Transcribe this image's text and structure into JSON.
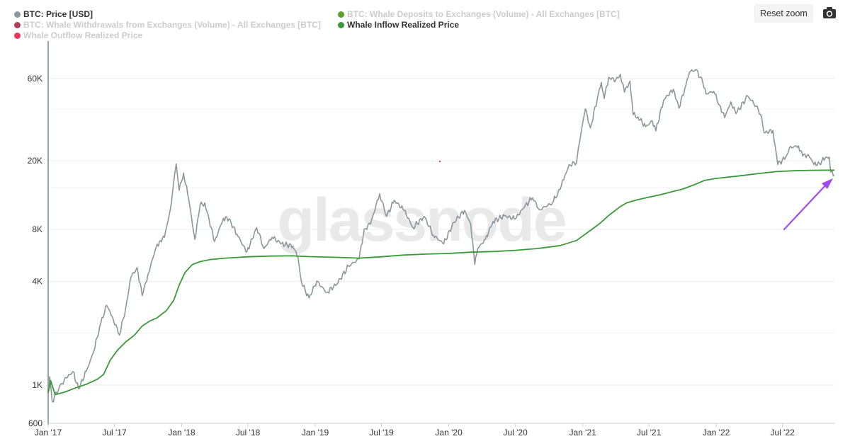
{
  "legend": [
    {
      "label": "BTC: Price [USD]",
      "color": "#8c969c",
      "active": true
    },
    {
      "label": "BTC: Whale Withdrawals from Exchanges (Volume) - All Exchanges [BTC]",
      "color": "#b0405a",
      "active": false
    },
    {
      "label": "Whale Outflow Realized Price",
      "color": "#e8385f",
      "active": false
    },
    {
      "label": "BTC: Whale Deposits to Exchanges (Volume) - All Exchanges [BTC]",
      "color": "#5aa02c",
      "active": false
    },
    {
      "label": "Whale Inflow Realized Price",
      "color": "#3a9a3a",
      "active": true
    }
  ],
  "toolbar": {
    "reset_zoom_label": "Reset zoom",
    "camera_icon": "camera-icon"
  },
  "watermark": "glassnode",
  "annotation": {
    "type": "arrow",
    "color": "#a04bf0",
    "points_to": "Whale Inflow Realized Price"
  },
  "chart_data": {
    "type": "line",
    "y_scale": "log",
    "ylim": [
      600,
      90000
    ],
    "xlim": [
      "2017-01-01",
      "2022-11-20"
    ],
    "y_ticks": [
      {
        "value": 600,
        "label": "600"
      },
      {
        "value": 1000,
        "label": "1K"
      },
      {
        "value": 4000,
        "label": "4K"
      },
      {
        "value": 8000,
        "label": "8K"
      },
      {
        "value": 20000,
        "label": "20K"
      },
      {
        "value": 60000,
        "label": "60K"
      }
    ],
    "x_ticks": [
      {
        "value": "2017-01-01",
        "label": "Jan '17"
      },
      {
        "value": "2017-07-01",
        "label": "Jul '17"
      },
      {
        "value": "2018-01-01",
        "label": "Jan '18"
      },
      {
        "value": "2018-07-01",
        "label": "Jul '18"
      },
      {
        "value": "2019-01-01",
        "label": "Jan '19"
      },
      {
        "value": "2019-07-01",
        "label": "Jul '19"
      },
      {
        "value": "2020-01-01",
        "label": "Jan '20"
      },
      {
        "value": "2020-07-01",
        "label": "Jul '20"
      },
      {
        "value": "2021-01-01",
        "label": "Jan '21"
      },
      {
        "value": "2021-07-01",
        "label": "Jul '21"
      },
      {
        "value": "2022-01-01",
        "label": "Jan '22"
      },
      {
        "value": "2022-07-01",
        "label": "Jul '22"
      }
    ],
    "series": [
      {
        "name": "BTC: Price [USD]",
        "color": "#8c969c",
        "points": [
          [
            "2017-01-01",
            900
          ],
          [
            "2017-01-05",
            1120
          ],
          [
            "2017-01-12",
            800
          ],
          [
            "2017-02-01",
            980
          ],
          [
            "2017-02-20",
            1100
          ],
          [
            "2017-03-10",
            1200
          ],
          [
            "2017-03-25",
            950
          ],
          [
            "2017-04-15",
            1200
          ],
          [
            "2017-05-05",
            1550
          ],
          [
            "2017-05-25",
            2300
          ],
          [
            "2017-06-10",
            2900
          ],
          [
            "2017-06-25",
            2500
          ],
          [
            "2017-07-15",
            1950
          ],
          [
            "2017-08-01",
            2800
          ],
          [
            "2017-08-15",
            4200
          ],
          [
            "2017-09-01",
            4800
          ],
          [
            "2017-09-15",
            3300
          ],
          [
            "2017-10-01",
            4400
          ],
          [
            "2017-10-20",
            6000
          ],
          [
            "2017-11-01",
            6800
          ],
          [
            "2017-11-15",
            7200
          ],
          [
            "2017-12-01",
            10500
          ],
          [
            "2017-12-10",
            15000
          ],
          [
            "2017-12-17",
            19200
          ],
          [
            "2017-12-25",
            13500
          ],
          [
            "2018-01-06",
            17000
          ],
          [
            "2018-01-20",
            12000
          ],
          [
            "2018-02-06",
            7000
          ],
          [
            "2018-02-20",
            11000
          ],
          [
            "2018-03-05",
            11400
          ],
          [
            "2018-04-01",
            6800
          ],
          [
            "2018-04-25",
            9300
          ],
          [
            "2018-05-10",
            9200
          ],
          [
            "2018-06-01",
            7500
          ],
          [
            "2018-06-28",
            5900
          ],
          [
            "2018-07-25",
            8200
          ],
          [
            "2018-08-14",
            6200
          ],
          [
            "2018-09-05",
            7200
          ],
          [
            "2018-10-01",
            6600
          ],
          [
            "2018-11-01",
            6400
          ],
          [
            "2018-11-15",
            5500
          ],
          [
            "2018-11-25",
            3900
          ],
          [
            "2018-12-15",
            3200
          ],
          [
            "2019-01-05",
            4000
          ],
          [
            "2019-02-01",
            3450
          ],
          [
            "2019-03-01",
            3850
          ],
          [
            "2019-04-02",
            4900
          ],
          [
            "2019-05-01",
            5400
          ],
          [
            "2019-05-15",
            8000
          ],
          [
            "2019-06-01",
            8600
          ],
          [
            "2019-06-26",
            12900
          ],
          [
            "2019-07-15",
            9500
          ],
          [
            "2019-08-05",
            11800
          ],
          [
            "2019-09-01",
            10300
          ],
          [
            "2019-09-25",
            8200
          ],
          [
            "2019-10-26",
            9500
          ],
          [
            "2019-11-20",
            7400
          ],
          [
            "2019-12-18",
            6600
          ],
          [
            "2020-01-15",
            8800
          ],
          [
            "2020-02-13",
            10300
          ],
          [
            "2020-03-01",
            8600
          ],
          [
            "2020-03-12",
            5000
          ],
          [
            "2020-03-20",
            6200
          ],
          [
            "2020-04-10",
            7000
          ],
          [
            "2020-05-01",
            8900
          ],
          [
            "2020-06-01",
            9600
          ],
          [
            "2020-07-01",
            9200
          ],
          [
            "2020-07-28",
            11000
          ],
          [
            "2020-08-17",
            12200
          ],
          [
            "2020-09-05",
            10400
          ],
          [
            "2020-10-10",
            11400
          ],
          [
            "2020-10-25",
            13000
          ],
          [
            "2020-11-10",
            15500
          ],
          [
            "2020-11-25",
            19000
          ],
          [
            "2020-12-15",
            19500
          ],
          [
            "2020-12-20",
            23500
          ],
          [
            "2021-01-08",
            40000
          ],
          [
            "2021-01-22",
            31000
          ],
          [
            "2021-02-10",
            46000
          ],
          [
            "2021-02-21",
            57000
          ],
          [
            "2021-03-01",
            46000
          ],
          [
            "2021-03-13",
            61000
          ],
          [
            "2021-04-01",
            58500
          ],
          [
            "2021-04-14",
            63500
          ],
          [
            "2021-04-25",
            50000
          ],
          [
            "2021-05-10",
            58000
          ],
          [
            "2021-05-19",
            37000
          ],
          [
            "2021-06-01",
            36000
          ],
          [
            "2021-06-22",
            31500
          ],
          [
            "2021-07-10",
            34000
          ],
          [
            "2021-07-20",
            29800
          ],
          [
            "2021-08-10",
            45000
          ],
          [
            "2021-09-06",
            52000
          ],
          [
            "2021-09-21",
            40500
          ],
          [
            "2021-10-10",
            55000
          ],
          [
            "2021-10-20",
            65500
          ],
          [
            "2021-11-08",
            67500
          ],
          [
            "2021-11-25",
            57000
          ],
          [
            "2021-12-04",
            49000
          ],
          [
            "2021-12-25",
            50500
          ],
          [
            "2022-01-10",
            42000
          ],
          [
            "2022-01-24",
            35500
          ],
          [
            "2022-02-10",
            44000
          ],
          [
            "2022-02-24",
            37500
          ],
          [
            "2022-03-28",
            47500
          ],
          [
            "2022-04-20",
            41500
          ],
          [
            "2022-05-05",
            36000
          ],
          [
            "2022-05-12",
            29000
          ],
          [
            "2022-06-05",
            30000
          ],
          [
            "2022-06-18",
            19000
          ],
          [
            "2022-07-10",
            21000
          ],
          [
            "2022-07-20",
            23800
          ],
          [
            "2022-08-14",
            24400
          ],
          [
            "2022-08-25",
            21300
          ],
          [
            "2022-09-10",
            21700
          ],
          [
            "2022-09-25",
            19000
          ],
          [
            "2022-10-10",
            19300
          ],
          [
            "2022-10-26",
            20800
          ],
          [
            "2022-11-06",
            21000
          ],
          [
            "2022-11-10",
            17200
          ],
          [
            "2022-11-20",
            16500
          ]
        ]
      },
      {
        "name": "Whale Inflow Realized Price",
        "color": "#3a9a3a",
        "points": [
          [
            "2017-01-01",
            900
          ],
          [
            "2017-01-08",
            1060
          ],
          [
            "2017-01-20",
            880
          ],
          [
            "2017-02-15",
            910
          ],
          [
            "2017-03-15",
            960
          ],
          [
            "2017-04-15",
            1010
          ],
          [
            "2017-05-15",
            1080
          ],
          [
            "2017-06-01",
            1150
          ],
          [
            "2017-06-20",
            1400
          ],
          [
            "2017-07-10",
            1600
          ],
          [
            "2017-08-01",
            1780
          ],
          [
            "2017-08-25",
            1950
          ],
          [
            "2017-09-15",
            2200
          ],
          [
            "2017-10-05",
            2350
          ],
          [
            "2017-10-25",
            2450
          ],
          [
            "2017-11-20",
            2700
          ],
          [
            "2017-12-10",
            3100
          ],
          [
            "2017-12-25",
            3800
          ],
          [
            "2018-01-10",
            4500
          ],
          [
            "2018-01-30",
            5000
          ],
          [
            "2018-02-20",
            5200
          ],
          [
            "2018-03-20",
            5350
          ],
          [
            "2018-05-01",
            5450
          ],
          [
            "2018-07-01",
            5550
          ],
          [
            "2018-09-01",
            5600
          ],
          [
            "2018-11-01",
            5620
          ],
          [
            "2018-12-15",
            5560
          ],
          [
            "2019-03-01",
            5510
          ],
          [
            "2019-05-01",
            5450
          ],
          [
            "2019-07-01",
            5550
          ],
          [
            "2019-09-01",
            5680
          ],
          [
            "2019-11-01",
            5750
          ],
          [
            "2020-01-01",
            5800
          ],
          [
            "2020-03-01",
            5900
          ],
          [
            "2020-05-01",
            5950
          ],
          [
            "2020-07-01",
            6050
          ],
          [
            "2020-09-01",
            6200
          ],
          [
            "2020-11-01",
            6450
          ],
          [
            "2020-12-15",
            6900
          ],
          [
            "2021-01-15",
            7700
          ],
          [
            "2021-02-15",
            8600
          ],
          [
            "2021-03-15",
            9700
          ],
          [
            "2021-04-15",
            10900
          ],
          [
            "2021-05-01",
            11400
          ],
          [
            "2021-06-01",
            11900
          ],
          [
            "2021-07-01",
            12300
          ],
          [
            "2021-08-01",
            12700
          ],
          [
            "2021-09-01",
            13200
          ],
          [
            "2021-10-01",
            13700
          ],
          [
            "2021-11-01",
            14500
          ],
          [
            "2021-12-01",
            15400
          ],
          [
            "2022-01-01",
            15800
          ],
          [
            "2022-03-01",
            16300
          ],
          [
            "2022-05-01",
            16900
          ],
          [
            "2022-06-15",
            17300
          ],
          [
            "2022-08-01",
            17500
          ],
          [
            "2022-09-15",
            17600
          ],
          [
            "2022-11-20",
            17650
          ]
        ]
      }
    ]
  }
}
